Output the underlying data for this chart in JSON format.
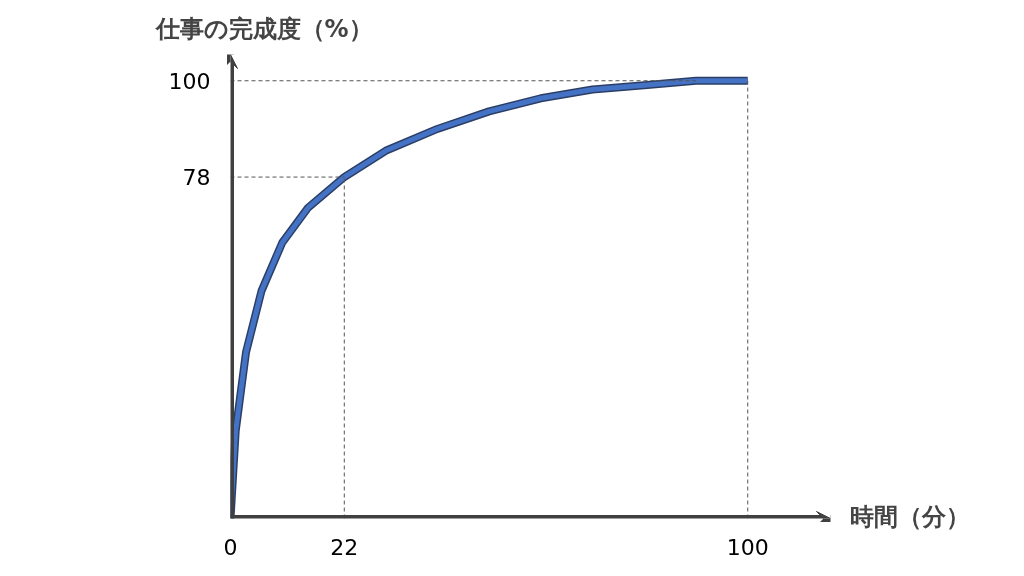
{
  "chart_data": {
    "type": "line",
    "xlabel": "時間（分）",
    "ylabel": "仕事の完成度（%）",
    "x": [
      0,
      1,
      3,
      6,
      10,
      15,
      22,
      30,
      40,
      50,
      60,
      70,
      80,
      90,
      100
    ],
    "series": [
      {
        "color": "#4472c4",
        "values": [
          0,
          20,
          38,
          52,
          63,
          71,
          78,
          84,
          89,
          93,
          96,
          98,
          99,
          100,
          100
        ]
      }
    ],
    "xlim": [
      0,
      116
    ],
    "ylim": [
      0,
      106
    ],
    "xticks": [
      0,
      22,
      100
    ],
    "yticks": [
      78,
      100
    ],
    "ref_lines": [
      {
        "axis": "x",
        "value": 22,
        "line_style": "dashed"
      },
      {
        "axis": "y",
        "value": 78,
        "line_style": "dashed"
      },
      {
        "axis": "x",
        "value": 100,
        "line_style": "dashed"
      },
      {
        "axis": "y",
        "value": 100,
        "line_style": "dashed"
      }
    ],
    "grid": false,
    "marker": "none",
    "line_style": "solid"
  }
}
